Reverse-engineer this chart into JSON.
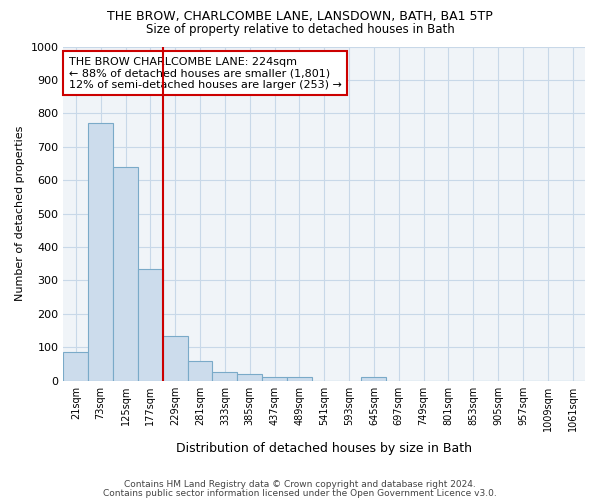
{
  "title1": "THE BROW, CHARLCOMBE LANE, LANSDOWN, BATH, BA1 5TP",
  "title2": "Size of property relative to detached houses in Bath",
  "xlabel": "Distribution of detached houses by size in Bath",
  "ylabel": "Number of detached properties",
  "categories": [
    "21sqm",
    "73sqm",
    "125sqm",
    "177sqm",
    "229sqm",
    "281sqm",
    "333sqm",
    "385sqm",
    "437sqm",
    "489sqm",
    "541sqm",
    "593sqm",
    "645sqm",
    "697sqm",
    "749sqm",
    "801sqm",
    "853sqm",
    "905sqm",
    "957sqm",
    "1009sqm",
    "1061sqm"
  ],
  "values": [
    85,
    770,
    640,
    335,
    135,
    60,
    25,
    20,
    10,
    10,
    0,
    0,
    10,
    0,
    0,
    0,
    0,
    0,
    0,
    0,
    0
  ],
  "bar_color": "#ccdcec",
  "bar_edge_color": "#7aaac8",
  "vline_color": "#cc0000",
  "vline_index": 4,
  "annotation_text": "THE BROW CHARLCOMBE LANE: 224sqm\n← 88% of detached houses are smaller (1,801)\n12% of semi-detached houses are larger (253) →",
  "annotation_box_color": "#cc0000",
  "ylim": [
    0,
    1000
  ],
  "yticks": [
    0,
    100,
    200,
    300,
    400,
    500,
    600,
    700,
    800,
    900,
    1000
  ],
  "footer1": "Contains HM Land Registry data © Crown copyright and database right 2024.",
  "footer2": "Contains public sector information licensed under the Open Government Licence v3.0.",
  "background_color": "#ffffff",
  "plot_bg_color": "#f0f4f8",
  "grid_color": "#c8d8e8"
}
